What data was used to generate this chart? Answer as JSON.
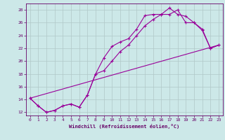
{
  "xlabel": "Windchill (Refroidissement éolien,°C)",
  "bg_color": "#cce8e8",
  "grid_color": "#b0c8c8",
  "line_color": "#990099",
  "xlim": [
    -0.5,
    23.5
  ],
  "ylim": [
    11.5,
    29.0
  ],
  "xticks": [
    0,
    1,
    2,
    3,
    4,
    5,
    6,
    7,
    8,
    9,
    10,
    11,
    12,
    13,
    14,
    15,
    16,
    17,
    18,
    19,
    20,
    21,
    22,
    23
  ],
  "yticks": [
    12,
    14,
    16,
    18,
    20,
    22,
    24,
    26,
    28
  ],
  "line1_x": [
    0,
    1,
    2,
    3,
    4,
    5,
    6,
    7,
    8,
    9,
    10,
    11,
    12,
    13,
    14,
    15,
    16,
    17,
    18,
    19,
    20,
    21,
    22,
    23
  ],
  "line1_y": [
    14.2,
    13.0,
    12.0,
    12.3,
    13.0,
    13.3,
    12.8,
    14.7,
    18.0,
    20.5,
    22.3,
    23.0,
    23.5,
    25.0,
    27.1,
    27.3,
    27.3,
    28.3,
    27.3,
    27.0,
    26.0,
    24.8,
    22.0,
    22.5
  ],
  "line2_x": [
    0,
    1,
    2,
    3,
    4,
    5,
    6,
    7,
    8,
    9,
    10,
    11,
    12,
    13,
    14,
    15,
    16,
    17,
    18,
    19,
    20,
    21,
    22,
    23
  ],
  "line2_y": [
    14.2,
    13.0,
    12.0,
    12.3,
    13.0,
    13.3,
    12.8,
    14.7,
    18.0,
    18.5,
    20.0,
    21.5,
    22.5,
    24.0,
    25.5,
    26.5,
    27.3,
    27.3,
    28.0,
    26.0,
    26.0,
    25.0,
    22.0,
    22.5
  ],
  "line3_x": [
    0,
    23
  ],
  "line3_y": [
    14.2,
    22.5
  ]
}
